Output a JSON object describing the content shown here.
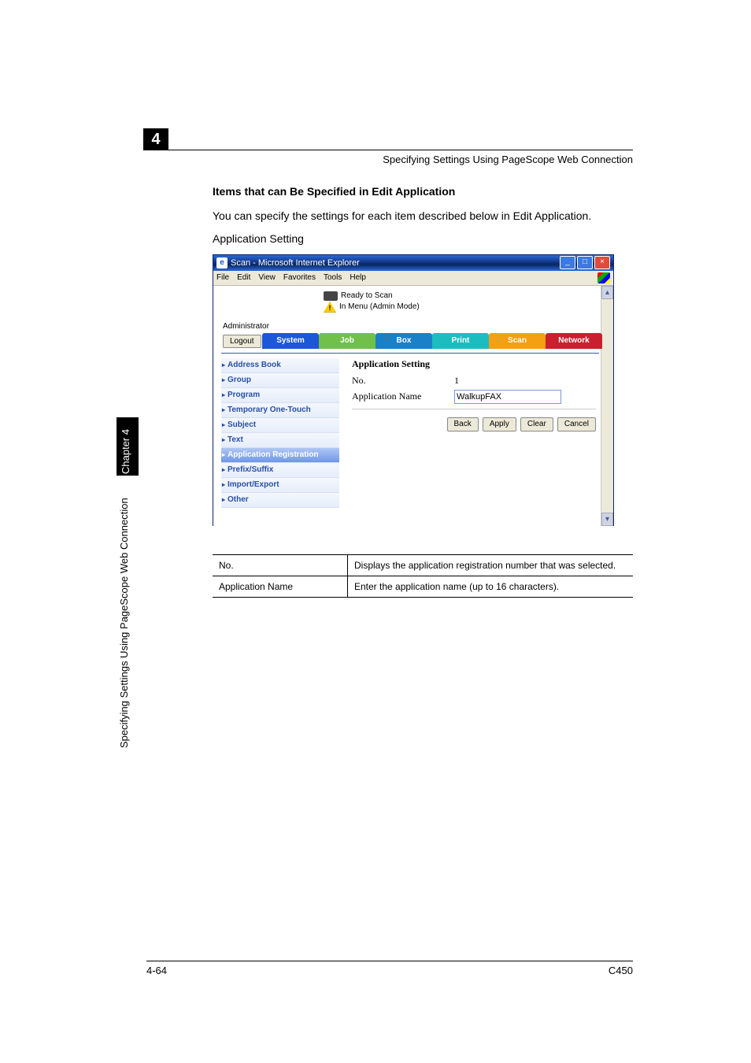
{
  "side": {
    "chapter": "Chapter 4",
    "label": "Specifying Settings Using PageScope Web Connection"
  },
  "header": {
    "number": "4",
    "text": "Specifying Settings Using PageScope Web Connection"
  },
  "section": {
    "title": "Items that can Be Specified in Edit Application",
    "p1": "You can specify the settings for each item described below in Edit Application.",
    "p2": "Application Setting"
  },
  "screenshot": {
    "title": "Scan - Microsoft Internet Explorer",
    "menu": {
      "file": "File",
      "edit": "Edit",
      "view": "View",
      "favorites": "Favorites",
      "tools": "Tools",
      "help": "Help"
    },
    "status": {
      "ready": "Ready to Scan",
      "warn": "In Menu (Admin Mode)"
    },
    "admin": "Administrator",
    "logout": "Logout",
    "tabs": {
      "system": "System",
      "job": "Job",
      "box": "Box",
      "print": "Print",
      "scan": "Scan",
      "network": "Network"
    },
    "sidebar": [
      "Address Book",
      "Group",
      "Program",
      "Temporary One-Touch",
      "Subject",
      "Text",
      "Application Registration",
      "Prefix/Suffix",
      "Import/Export",
      "Other"
    ],
    "sidebar_selected_index": 6,
    "form": {
      "heading": "Application Setting",
      "no_label": "No.",
      "no_value": "1",
      "name_label": "Application Name",
      "name_value": "WalkupFAX"
    },
    "buttons": {
      "back": "Back",
      "apply": "Apply",
      "clear": "Clear",
      "cancel": "Cancel"
    },
    "colors": {
      "title_bar": "#0a246a",
      "system": "#1b57d6",
      "job": "#70c04a",
      "box": "#1a80c8",
      "print": "#1dbdbf",
      "scan": "#f4a012",
      "network": "#c8202f",
      "sidebar_link": "#274fa6"
    }
  },
  "desc_table": {
    "rows": [
      {
        "k": "No.",
        "v": "Displays the application registration number that was selected."
      },
      {
        "k": "Application Name",
        "v": "Enter the application name (up to 16 characters)."
      }
    ]
  },
  "footer": {
    "page": "4-64",
    "model": "C450"
  }
}
